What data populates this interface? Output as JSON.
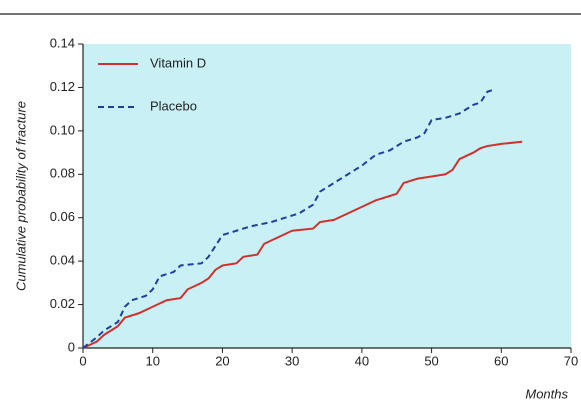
{
  "chart_data": {
    "type": "line",
    "y_label": "Cumulative probability of fracture",
    "x_label": "Months",
    "xlim": [
      0,
      70
    ],
    "xticks": [
      0,
      10,
      20,
      30,
      40,
      50,
      60,
      70
    ],
    "ylim": [
      0,
      0.14
    ],
    "yticks": [
      0,
      0.02,
      0.04,
      0.06,
      0.08,
      {
        "value": 0.1,
        "label": "0.10"
      },
      0.12,
      0.14
    ],
    "grid": false,
    "legend": "upper left",
    "background": "#c9f1f5",
    "series": [
      {
        "name": "Vitamin D",
        "color": "#d0312d",
        "dash": false,
        "x": [
          0,
          2,
          3,
          5,
          6,
          8,
          10,
          12,
          14,
          15,
          17,
          18,
          19,
          20,
          22,
          23,
          25,
          26,
          28,
          30,
          33,
          34,
          36,
          38,
          40,
          42,
          44,
          45,
          46,
          48,
          50,
          52,
          53,
          54,
          56,
          57,
          58,
          60,
          63
        ],
        "values": [
          0,
          0.003,
          0.006,
          0.01,
          0.014,
          0.016,
          0.019,
          0.022,
          0.023,
          0.027,
          0.03,
          0.032,
          0.036,
          0.038,
          0.039,
          0.042,
          0.043,
          0.048,
          0.051,
          0.054,
          0.055,
          0.058,
          0.059,
          0.062,
          0.065,
          0.068,
          0.07,
          0.071,
          0.076,
          0.078,
          0.079,
          0.08,
          0.082,
          0.087,
          0.09,
          0.092,
          0.093,
          0.094,
          0.095
        ]
      },
      {
        "name": "Placebo",
        "color": "#1f3fa0",
        "dash": true,
        "x": [
          0,
          2,
          3,
          5,
          6,
          7,
          9,
          10,
          11,
          13,
          14,
          17,
          18,
          20,
          22,
          24,
          27,
          29,
          31,
          33,
          34,
          36,
          38,
          40,
          42,
          44,
          46,
          48,
          49,
          50,
          52,
          54,
          56,
          57,
          58,
          59
        ],
        "values": [
          0,
          0.005,
          0.008,
          0.012,
          0.019,
          0.022,
          0.024,
          0.027,
          0.033,
          0.035,
          0.038,
          0.039,
          0.042,
          0.052,
          0.054,
          0.056,
          0.058,
          0.06,
          0.062,
          0.066,
          0.072,
          0.076,
          0.08,
          0.084,
          0.089,
          0.091,
          0.095,
          0.097,
          0.099,
          0.105,
          0.106,
          0.108,
          0.112,
          0.113,
          0.118,
          0.119
        ]
      }
    ]
  }
}
